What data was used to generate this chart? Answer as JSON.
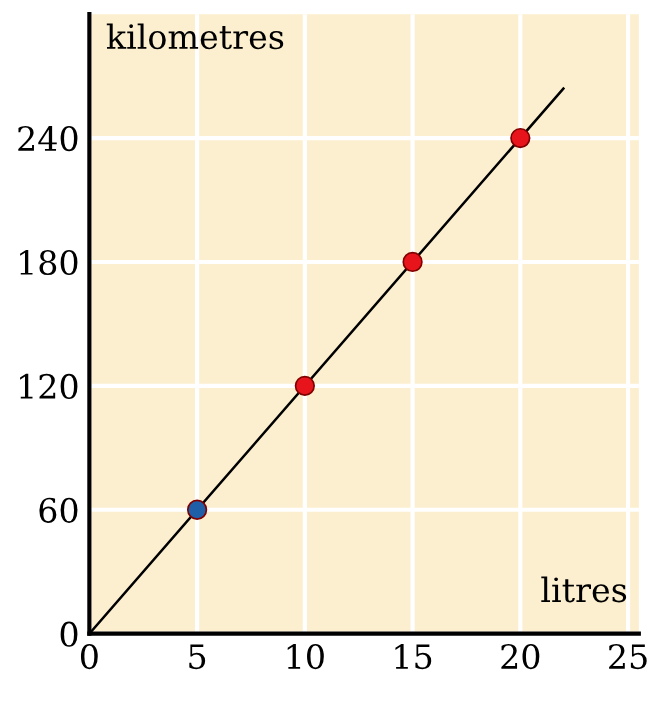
{
  "chart_data": {
    "type": "line",
    "xlabel": "litres",
    "ylabel": "kilometres",
    "series": [
      {
        "color": "#000000",
        "x": [
          0,
          22
        ],
        "values": [
          0,
          264
        ],
        "marker": "none"
      },
      {
        "type": "scatter",
        "color": "#e8141c",
        "x": [
          10,
          15,
          20
        ],
        "values": [
          120,
          180,
          240
        ],
        "marker": "circle"
      },
      {
        "type": "scatter",
        "color": "#1f5fa8",
        "x": [
          5
        ],
        "values": [
          60
        ],
        "marker": "circle"
      }
    ],
    "xlim": [
      0,
      25.5
    ],
    "ylim": [
      0,
      300
    ],
    "xticks": [
      0,
      5,
      10,
      15,
      20,
      25
    ],
    "yticks": [
      0,
      60,
      120,
      180,
      240
    ],
    "grid": true
  }
}
